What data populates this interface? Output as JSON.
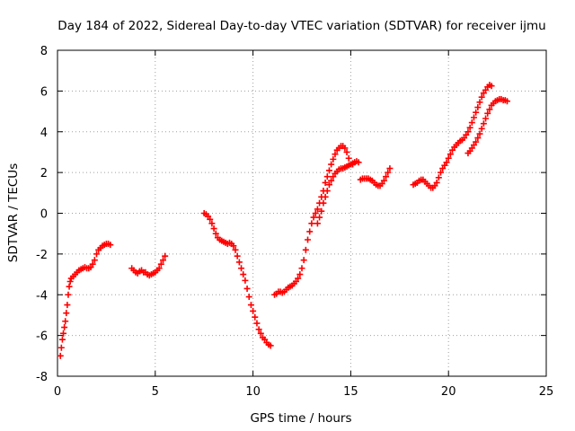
{
  "chart_data": {
    "type": "scatter",
    "title": "Day 184 of 2022, Sidereal Day-to-day VTEC variation (SDTVAR) for receiver ijmu",
    "xlabel": "GPS time / hours",
    "ylabel": "SDTVAR / TECUs",
    "xlim": [
      0,
      25
    ],
    "ylim": [
      -8,
      8
    ],
    "xticks": [
      0,
      5,
      10,
      15,
      20,
      25
    ],
    "yticks": [
      -8,
      -6,
      -4,
      -2,
      0,
      2,
      4,
      6,
      8
    ],
    "xtick_labels": [
      "0",
      "5",
      "10",
      "15",
      "20",
      "25"
    ],
    "ytick_labels": [
      "-8",
      "-6",
      "-4",
      "-2",
      "0",
      "2",
      "4",
      "6",
      "8"
    ],
    "grid": true,
    "marker": "+",
    "color": "#ff0000",
    "series": [
      {
        "name": "seg1",
        "x": [
          0.15,
          0.2,
          0.25,
          0.3,
          0.35,
          0.4,
          0.45,
          0.5,
          0.55,
          0.6,
          0.65,
          0.7,
          0.8,
          0.9,
          1.0,
          1.1,
          1.2,
          1.3,
          1.4,
          1.5,
          1.6,
          1.7,
          1.8,
          1.9,
          2.0,
          2.1,
          2.2,
          2.3,
          2.4,
          2.5,
          2.6,
          2.7
        ],
        "y": [
          -7.0,
          -6.6,
          -6.2,
          -5.9,
          -5.6,
          -5.3,
          -4.9,
          -4.5,
          -4.0,
          -3.6,
          -3.35,
          -3.2,
          -3.1,
          -3.0,
          -2.9,
          -2.8,
          -2.75,
          -2.7,
          -2.65,
          -2.7,
          -2.7,
          -2.65,
          -2.5,
          -2.3,
          -2.0,
          -1.8,
          -1.7,
          -1.6,
          -1.55,
          -1.5,
          -1.5,
          -1.55
        ]
      },
      {
        "name": "seg2",
        "x": [
          3.8,
          3.9,
          4.0,
          4.1,
          4.2,
          4.3,
          4.4,
          4.5,
          4.6,
          4.7,
          4.8,
          4.9,
          5.0,
          5.1,
          5.2,
          5.3,
          5.4,
          5.5
        ],
        "y": [
          -2.7,
          -2.8,
          -2.9,
          -2.95,
          -2.85,
          -2.8,
          -2.9,
          -2.9,
          -3.0,
          -3.05,
          -3.0,
          -2.95,
          -2.9,
          -2.8,
          -2.7,
          -2.5,
          -2.3,
          -2.1
        ]
      },
      {
        "name": "seg3",
        "x": [
          7.5,
          7.6,
          7.7,
          7.8,
          7.9,
          8.0,
          8.1,
          8.2,
          8.3,
          8.4,
          8.5,
          8.6,
          8.7,
          8.8,
          8.9,
          9.0,
          9.1,
          9.2,
          9.3,
          9.4,
          9.5,
          9.6,
          9.7,
          9.8,
          9.9,
          10.0,
          10.1,
          10.2,
          10.3,
          10.4,
          10.5,
          10.6,
          10.7,
          10.8,
          10.9
        ],
        "y": [
          0.0,
          -0.05,
          -0.15,
          -0.3,
          -0.5,
          -0.75,
          -1.0,
          -1.2,
          -1.3,
          -1.35,
          -1.4,
          -1.45,
          -1.5,
          -1.45,
          -1.5,
          -1.6,
          -1.8,
          -2.1,
          -2.4,
          -2.7,
          -3.0,
          -3.3,
          -3.7,
          -4.1,
          -4.5,
          -4.8,
          -5.1,
          -5.4,
          -5.7,
          -5.9,
          -6.1,
          -6.2,
          -6.35,
          -6.45,
          -6.5
        ]
      },
      {
        "name": "seg4",
        "x": [
          11.1,
          11.2,
          11.3,
          11.4,
          11.5,
          11.6,
          11.7,
          11.8,
          11.9,
          12.0,
          12.1,
          12.2,
          12.3,
          12.4,
          12.5,
          12.6,
          12.7,
          12.8,
          12.9,
          13.0,
          13.1,
          13.2,
          13.3,
          13.4,
          13.5,
          13.6,
          13.7,
          13.8,
          13.9,
          14.0,
          14.1,
          14.2,
          14.3,
          14.4,
          14.5,
          14.6,
          14.7,
          14.8,
          14.9,
          15.0,
          15.1,
          15.2
        ],
        "y": [
          -4.0,
          -3.95,
          -3.85,
          -3.85,
          -3.9,
          -3.85,
          -3.75,
          -3.65,
          -3.6,
          -3.55,
          -3.45,
          -3.35,
          -3.2,
          -3.0,
          -2.7,
          -2.3,
          -1.8,
          -1.3,
          -0.9,
          -0.5,
          -0.2,
          0.0,
          0.2,
          0.5,
          0.8,
          1.1,
          1.5,
          1.8,
          2.1,
          2.4,
          2.65,
          2.9,
          3.1,
          3.2,
          3.3,
          3.3,
          3.2,
          3.0,
          2.7,
          2.4,
          2.4,
          2.5
        ]
      },
      {
        "name": "seg5",
        "x": [
          13.3,
          13.4,
          13.5,
          13.6,
          13.7,
          13.8,
          13.9,
          14.0,
          14.1,
          14.2,
          14.3,
          14.4,
          14.5,
          14.6,
          14.7,
          14.8,
          14.9,
          15.0,
          15.1,
          15.2,
          15.3,
          15.4
        ],
        "y": [
          -0.5,
          -0.2,
          0.1,
          0.5,
          0.8,
          1.1,
          1.4,
          1.6,
          1.8,
          1.95,
          2.05,
          2.15,
          2.2,
          2.2,
          2.25,
          2.3,
          2.35,
          2.4,
          2.45,
          2.5,
          2.55,
          2.5
        ]
      },
      {
        "name": "seg6",
        "x": [
          15.5,
          15.6,
          15.7,
          15.8,
          15.9,
          16.0,
          16.1,
          16.2,
          16.3,
          16.4,
          16.5,
          16.6,
          16.7,
          16.8,
          16.9,
          17.0
        ],
        "y": [
          1.65,
          1.7,
          1.7,
          1.7,
          1.7,
          1.65,
          1.6,
          1.5,
          1.4,
          1.35,
          1.35,
          1.45,
          1.6,
          1.8,
          2.0,
          2.2
        ]
      },
      {
        "name": "seg7",
        "x": [
          18.2,
          18.3,
          18.4,
          18.5,
          18.6,
          18.7,
          18.8,
          18.9,
          19.0,
          19.1,
          19.2,
          19.3,
          19.4,
          19.5,
          19.6,
          19.7,
          19.8,
          19.9,
          20.0,
          20.1,
          20.2,
          20.3,
          20.4,
          20.5,
          20.6,
          20.7,
          20.8,
          20.9,
          21.0,
          21.1,
          21.2,
          21.3,
          21.4,
          21.5,
          21.6,
          21.7,
          21.8,
          21.9,
          22.0,
          22.1,
          22.2
        ],
        "y": [
          1.4,
          1.45,
          1.5,
          1.6,
          1.65,
          1.65,
          1.55,
          1.45,
          1.35,
          1.25,
          1.25,
          1.35,
          1.5,
          1.75,
          2.0,
          2.2,
          2.35,
          2.5,
          2.7,
          2.9,
          3.1,
          3.25,
          3.35,
          3.45,
          3.55,
          3.6,
          3.7,
          3.85,
          4.0,
          4.2,
          4.45,
          4.7,
          4.95,
          5.2,
          5.45,
          5.7,
          5.9,
          6.05,
          6.2,
          6.3,
          6.25
        ]
      },
      {
        "name": "seg8",
        "x": [
          21.0,
          21.1,
          21.2,
          21.3,
          21.4,
          21.5,
          21.6,
          21.7,
          21.8,
          21.9,
          22.0,
          22.1,
          22.2,
          22.3,
          22.4,
          22.5,
          22.6,
          22.7,
          22.8,
          22.9,
          23.0
        ],
        "y": [
          2.95,
          3.05,
          3.2,
          3.35,
          3.5,
          3.7,
          3.9,
          4.15,
          4.4,
          4.65,
          4.9,
          5.1,
          5.3,
          5.4,
          5.5,
          5.55,
          5.6,
          5.6,
          5.55,
          5.55,
          5.5
        ]
      }
    ]
  }
}
